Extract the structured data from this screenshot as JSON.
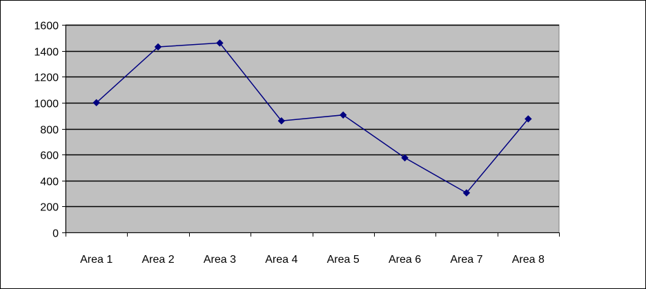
{
  "chart_data": {
    "type": "line",
    "categories": [
      "Area 1",
      "Area 2",
      "Area 3",
      "Area 4",
      "Area 5",
      "Area 6",
      "Area 7",
      "Area 8"
    ],
    "series": [
      {
        "values": [
          1000,
          1430,
          1460,
          860,
          905,
          575,
          305,
          875
        ]
      }
    ],
    "title": "",
    "xlabel": "",
    "ylabel": "",
    "ylim": [
      0,
      1600
    ],
    "yticks": [
      0,
      200,
      400,
      600,
      800,
      1000,
      1200,
      1400,
      1600
    ],
    "grid": true,
    "legend": "none",
    "marker": "diamond"
  },
  "colors": {
    "plot_background": "#c0c0c0",
    "gridline": "#000000",
    "series_line": "#000080",
    "marker": "#000080"
  }
}
